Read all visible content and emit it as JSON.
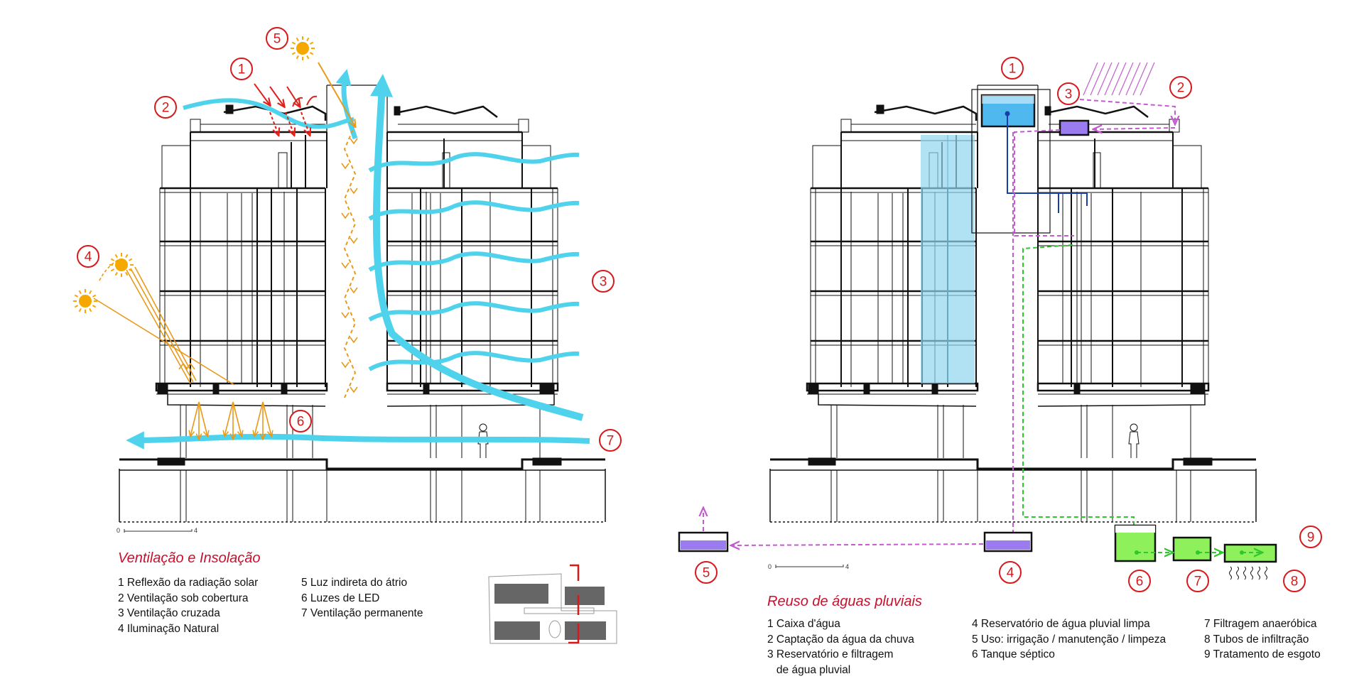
{
  "left_panel": {
    "title": "Ventilação e Insolação",
    "legend_col1": [
      "1 Reflexão da radiação solar",
      "2 Ventilação sob cobertura",
      "3 Ventilação cruzada",
      "4 Iluminação Natural"
    ],
    "legend_col2": [
      "5 Luz indireta do átrio",
      "6 Luzes de LED",
      "7 Ventilação permanente"
    ],
    "markers": [
      "1",
      "2",
      "3",
      "4",
      "5",
      "6",
      "7"
    ],
    "scale": {
      "start": "0",
      "end": "4"
    }
  },
  "right_panel": {
    "title": "Reuso de águas pluviais",
    "legend_col1": [
      "1 Caixa d'água",
      "2 Captação da água da chuva",
      "3 Reservatório e filtragem",
      "   de água pluvial"
    ],
    "legend_col2": [
      "4 Reservatório de água pluvial limpa",
      "5 Uso: irrigação / manutenção / limpeza",
      "6 Tanque séptico"
    ],
    "legend_col3": [
      "7 Filtragem anaeróbica",
      "8 Tubos de infiltração",
      "9 Tratamento de esgoto"
    ],
    "markers": [
      "1",
      "2",
      "3",
      "4",
      "5",
      "6",
      "7",
      "8",
      "9"
    ],
    "scale": {
      "start": "0",
      "end": "4"
    }
  },
  "colors": {
    "marker_red": "#d7191c",
    "title_red": "#c8102e",
    "wind_cyan": "#4fd3ec",
    "sun_orange": "#f5a800",
    "light_orange": "#e89a1a",
    "reflection_red": "#e0201b",
    "water_blue": "#8fd6f0",
    "pipe_blue": "#1a3ea8",
    "rain_purple": "#c45bd1",
    "septic_green": "#8ef05a",
    "pipe_green": "#2ec82e",
    "tank_purple": "#9b7cf0"
  },
  "icons": [
    "sun-icon",
    "wind-arrow-icon",
    "person-icon",
    "site-plan-icon"
  ]
}
